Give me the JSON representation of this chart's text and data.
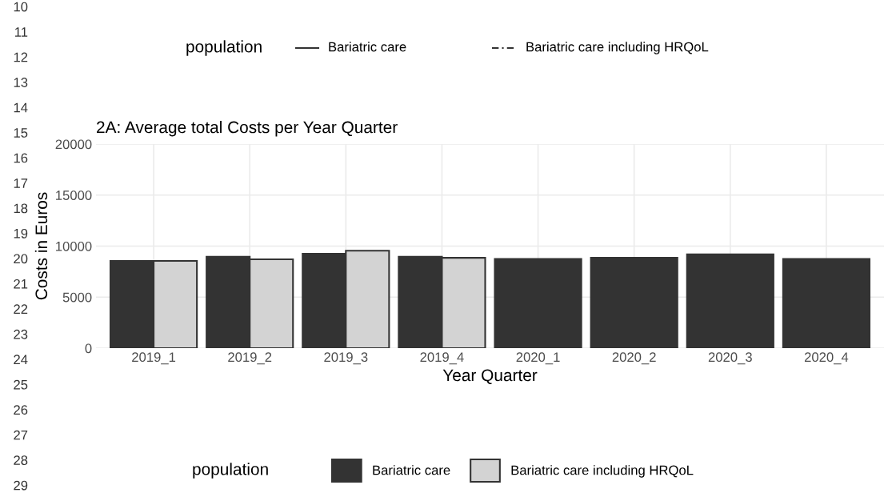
{
  "chart_data": {
    "type": "bar",
    "title": "2A: Average total Costs per Year Quarter",
    "xlabel": "Year Quarter",
    "ylabel": "Costs in Euros",
    "categories": [
      "2019_1",
      "2019_2",
      "2019_3",
      "2019_4",
      "2020_1",
      "2020_2",
      "2020_3",
      "2020_4"
    ],
    "series": [
      {
        "name": "Bariatric care",
        "color": "#333333",
        "values": [
          8550,
          8950,
          9250,
          8950,
          8750,
          8850,
          9200,
          8750
        ]
      },
      {
        "name": "Bariatric care including HRQoL",
        "color": "#d3d3d3",
        "values": [
          8550,
          8700,
          9550,
          8850,
          null,
          null,
          null,
          null
        ]
      }
    ],
    "ylim": [
      0,
      20000
    ],
    "yticks": [
      0,
      5000,
      10000,
      15000,
      20000
    ],
    "grid": true,
    "legend": "bottom",
    "legend_title": "population",
    "annotations": [
      "population",
      "Bariatric care",
      "Bariatric care including HRQoL",
      "10",
      "11",
      "12",
      "13",
      "14",
      "15",
      "16",
      "17",
      "18",
      "19",
      "20",
      "21",
      "22",
      "23",
      "24",
      "25",
      "26",
      "27",
      "28",
      "29"
    ]
  }
}
